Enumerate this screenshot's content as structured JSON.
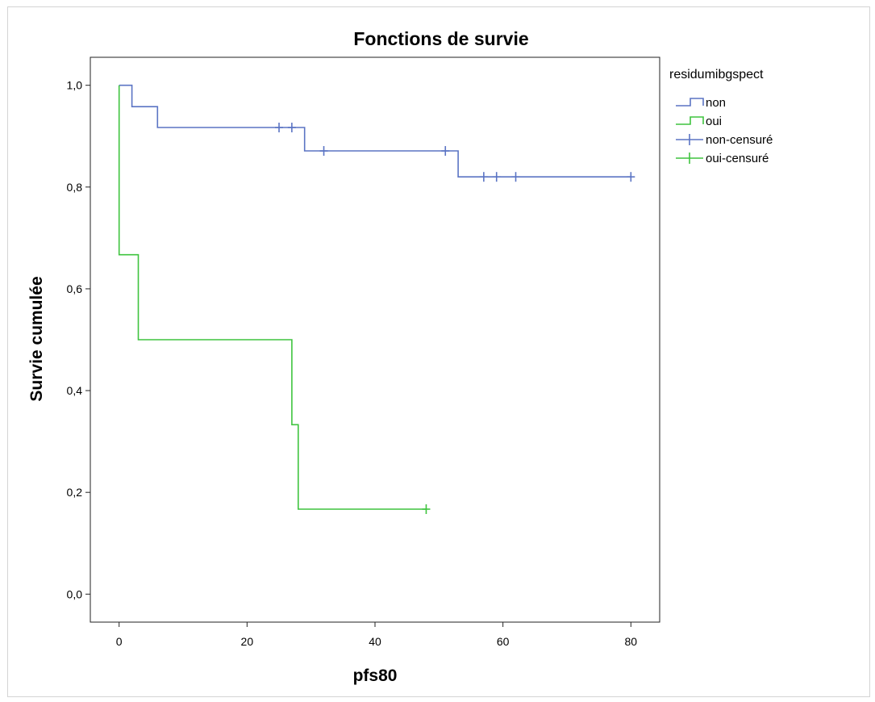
{
  "chart_data": {
    "type": "line",
    "title": "Fonctions de survie",
    "xlabel": "pfs80",
    "ylabel": "Survie cumulée",
    "xlim": [
      -4.5,
      84.5
    ],
    "ylim": [
      -0.055,
      1.055
    ],
    "x_ticks": [
      0,
      20,
      40,
      60,
      80
    ],
    "y_ticks": [
      0.0,
      0.2,
      0.4,
      0.6,
      0.8,
      1.0
    ],
    "x_tick_labels": [
      "0",
      "20",
      "40",
      "60",
      "80"
    ],
    "y_tick_labels": [
      "0,0",
      "0,2",
      "0,4",
      "0,6",
      "0,8",
      "1,0"
    ],
    "grid": false,
    "legend": {
      "title": "residumibgspect",
      "position": "right",
      "entries": [
        "non",
        "oui",
        "non-censuré",
        "oui-censuré"
      ]
    },
    "series": [
      {
        "name": "non",
        "color": "#5b74c4",
        "step_points": [
          [
            0,
            1.0
          ],
          [
            2,
            1.0
          ],
          [
            2,
            0.958
          ],
          [
            6,
            0.958
          ],
          [
            6,
            0.917
          ],
          [
            29,
            0.917
          ],
          [
            29,
            0.871
          ],
          [
            53,
            0.871
          ],
          [
            53,
            0.82
          ],
          [
            80,
            0.82
          ]
        ],
        "censored": [
          [
            25,
            0.917
          ],
          [
            27,
            0.917
          ],
          [
            32,
            0.871
          ],
          [
            51,
            0.871
          ],
          [
            57,
            0.82
          ],
          [
            59,
            0.82
          ],
          [
            62,
            0.82
          ],
          [
            80,
            0.82
          ]
        ]
      },
      {
        "name": "oui",
        "color": "#3fc43f",
        "step_points": [
          [
            0,
            1.0
          ],
          [
            0,
            0.667
          ],
          [
            3,
            0.667
          ],
          [
            3,
            0.5
          ],
          [
            27,
            0.5
          ],
          [
            27,
            0.333
          ],
          [
            28,
            0.333
          ],
          [
            28,
            0.167
          ],
          [
            48,
            0.167
          ]
        ],
        "censored": [
          [
            48,
            0.167
          ]
        ]
      }
    ]
  }
}
